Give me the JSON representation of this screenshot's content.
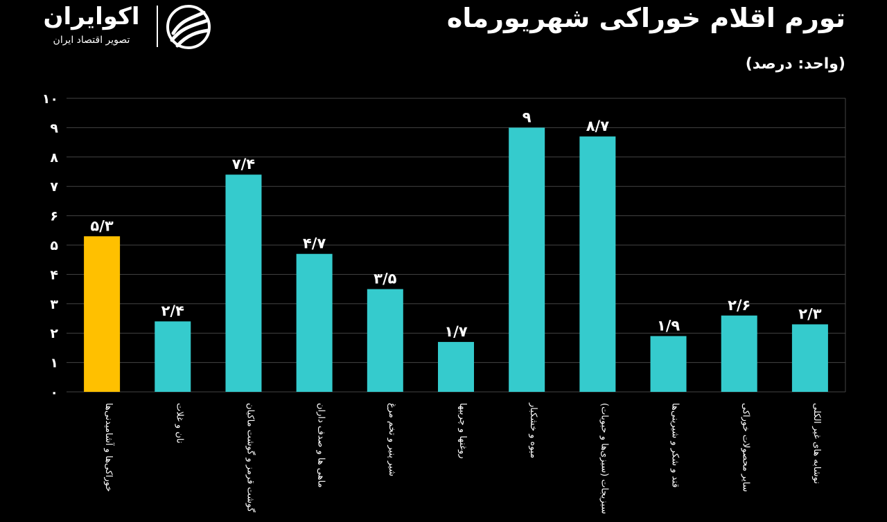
{
  "header": {
    "title": "تورم اقلام خوراکی شهریورماه",
    "subtitle": "(واحد: درصد)"
  },
  "logo": {
    "name": "اکوایران",
    "tagline": "تصویر اقتصاد ایران",
    "icon": "ecoiran-logo-icon"
  },
  "colors": {
    "background": "#000000",
    "highlight_bar": "#ffc000",
    "bar": "#35cbcd",
    "grid": "#444444",
    "text": "#ffffff"
  },
  "chart_data": {
    "type": "bar",
    "title": "تورم اقلام خوراکی شهریورماه",
    "ylabel": "(واحد: درصد)",
    "xlabel": "",
    "ylim": [
      0,
      10
    ],
    "grid": true,
    "yticks": [
      0,
      1,
      2,
      3,
      4,
      5,
      6,
      7,
      8,
      9,
      10
    ],
    "ytick_labels": [
      "۰",
      "۱",
      "۲",
      "۳",
      "۴",
      "۵",
      "۶",
      "۷",
      "۸",
      "۹",
      "۱۰"
    ],
    "categories": [
      "خوراکی‌ها و آشامیدنی‌ها",
      "نان و غلات",
      "گوشت قرمز و گوشت ماکیان",
      "ماهی ها و صدف داران",
      "شیر پنیر و تخم مرغ",
      "روغنها و چربیها",
      "میوه و خشکبار",
      "سبزیجات (سبزی‌ها و حبوبات)",
      "قند و شکر و شیرینی‌ها",
      "سایر محصولات خوراکی",
      "نوشابه های غیر الکلی"
    ],
    "values": [
      5.3,
      2.4,
      7.4,
      4.7,
      3.5,
      1.7,
      9,
      8.7,
      1.9,
      2.6,
      2.3
    ],
    "value_labels": [
      "۵/۳",
      "۲/۴",
      "۷/۴",
      "۴/۷",
      "۳/۵",
      "۱/۷",
      "۹",
      "۸/۷",
      "۱/۹",
      "۲/۶",
      "۲/۳"
    ],
    "highlighted_category": "خوراکی‌ها و آشامیدنی‌ها"
  }
}
